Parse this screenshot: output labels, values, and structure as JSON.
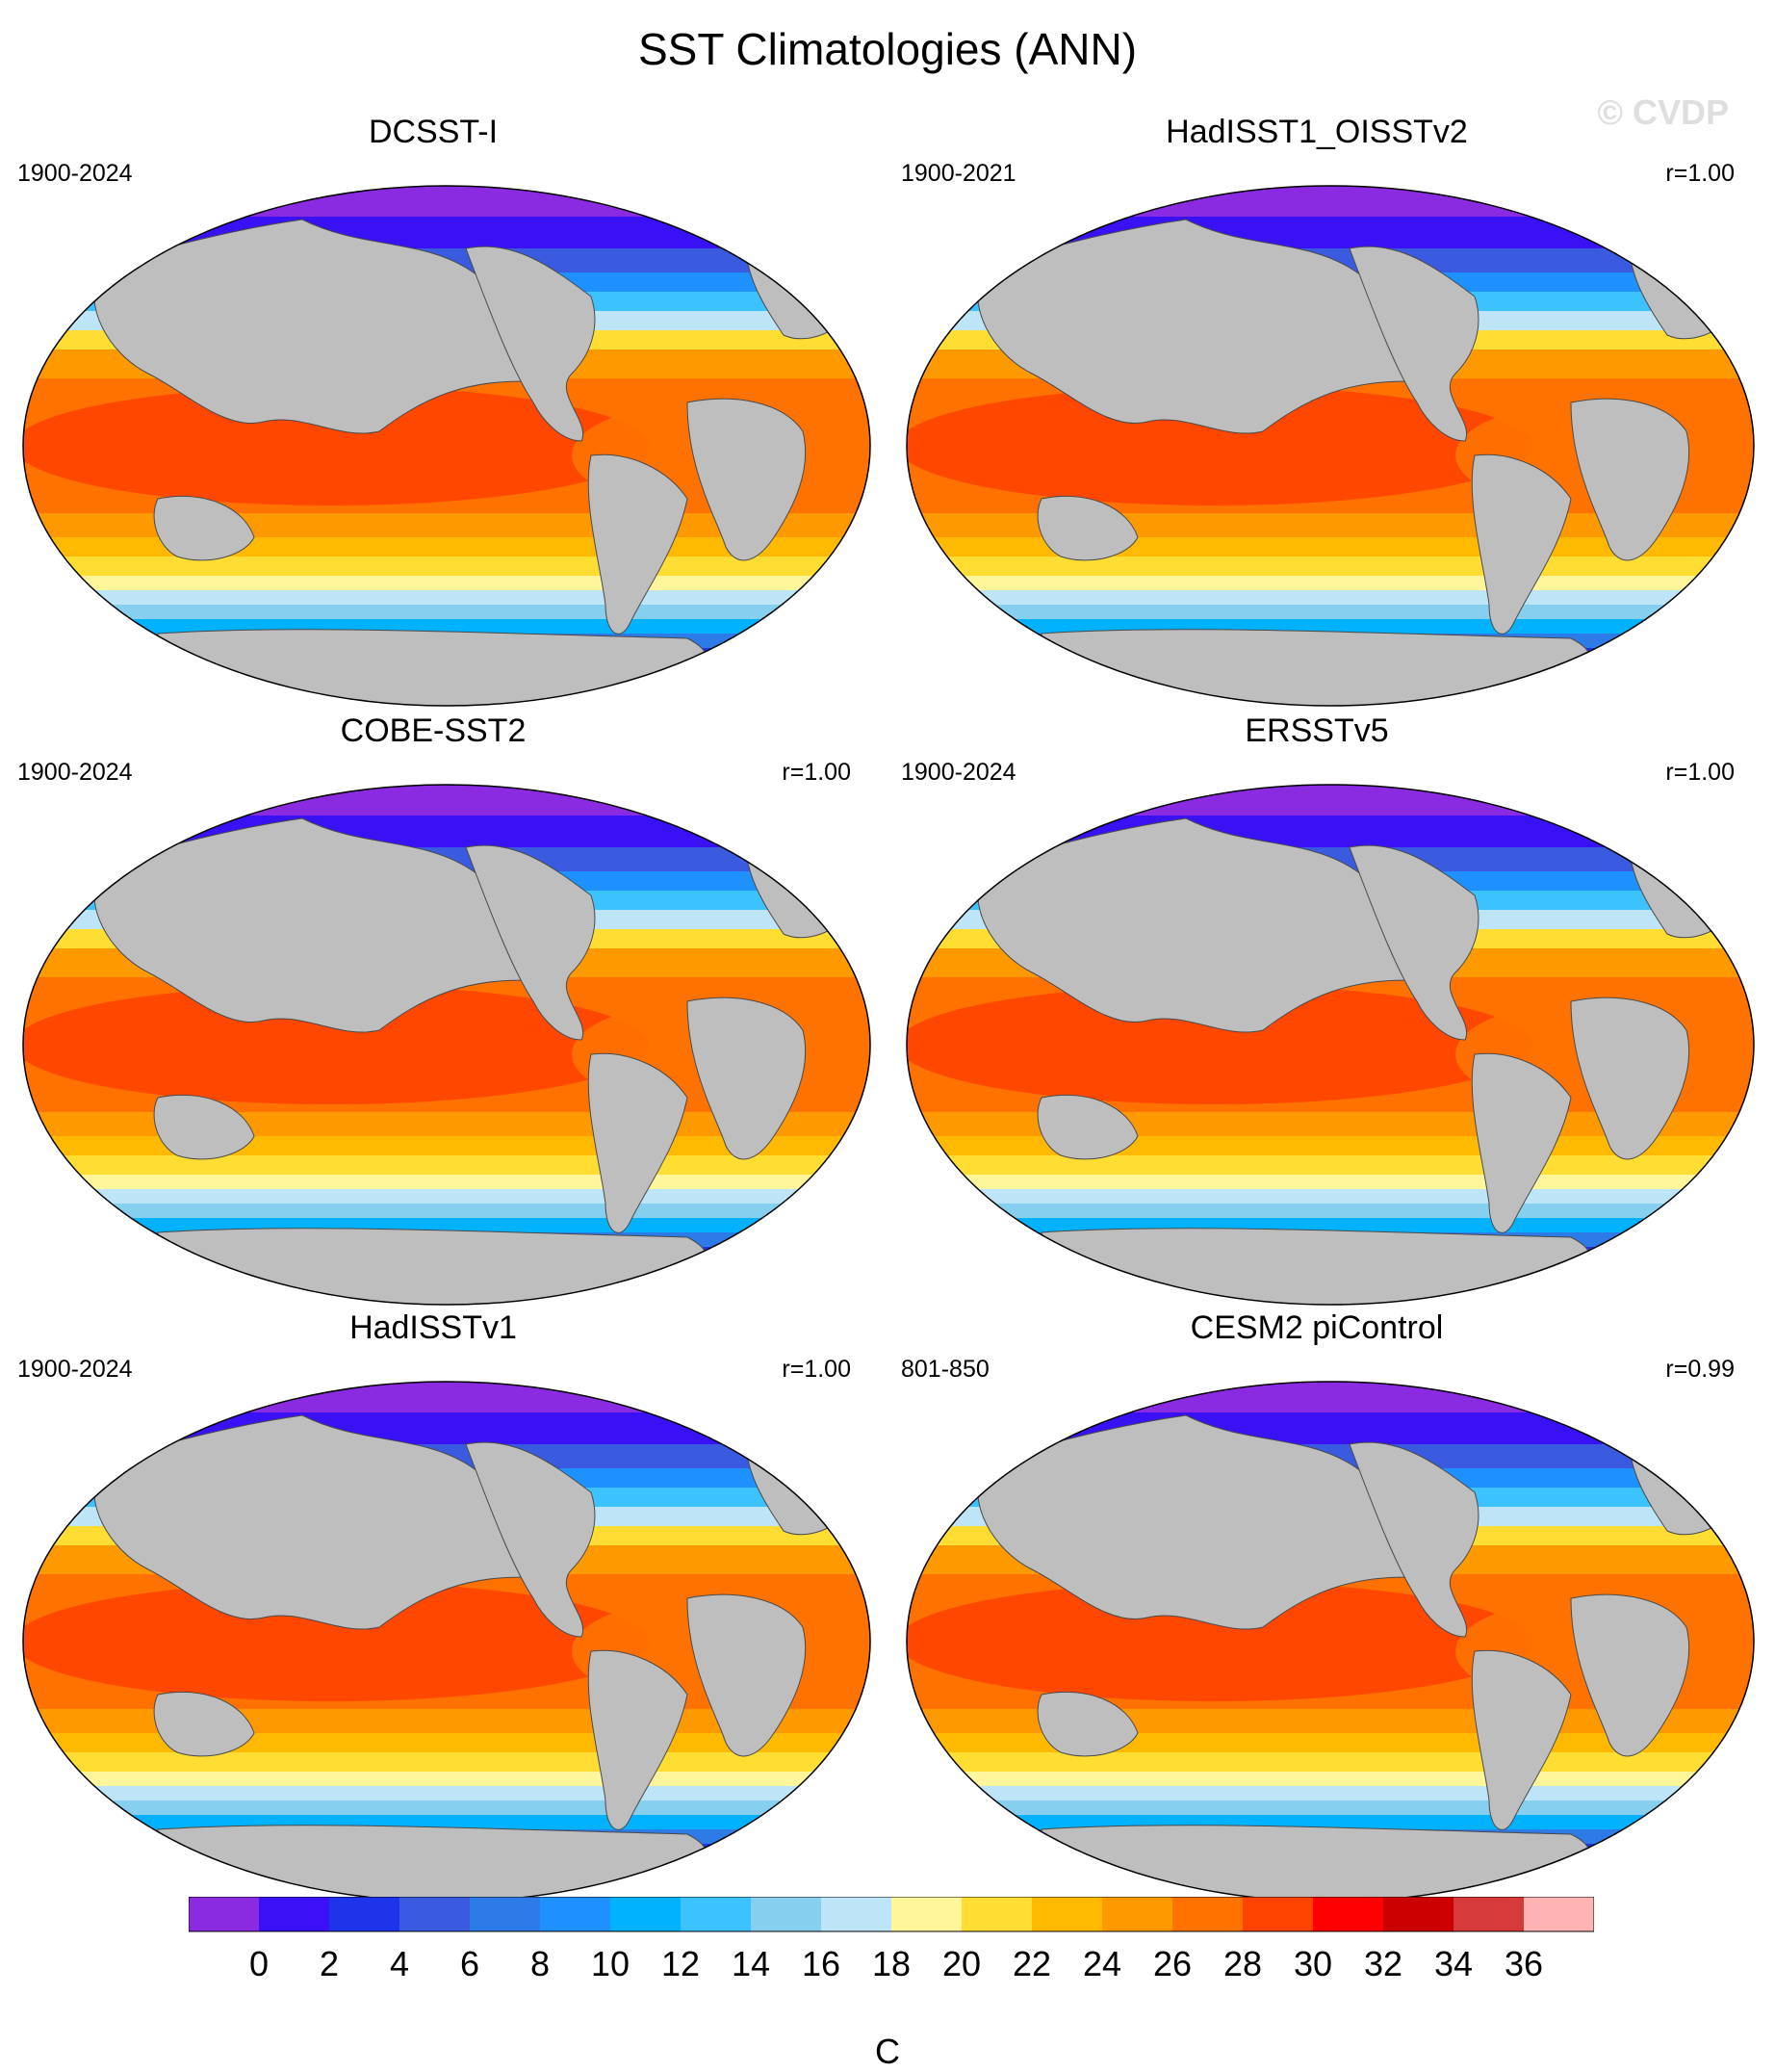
{
  "title": "SST Climatologies (ANN)",
  "watermark": "© CVDP",
  "panels": [
    {
      "name": "DCSST-I",
      "years": "1900-2024",
      "corr": ""
    },
    {
      "name": "HadISST1_OISSTv2",
      "years": "1900-2021",
      "corr": "r=1.00"
    },
    {
      "name": "COBE-SST2",
      "years": "1900-2024",
      "corr": "r=1.00"
    },
    {
      "name": "ERSSTv5",
      "years": "1900-2024",
      "corr": "r=1.00"
    },
    {
      "name": "HadISSTv1",
      "years": "1900-2024",
      "corr": "r=1.00"
    },
    {
      "name": "CESM2 piControl",
      "years": "801-850",
      "corr": "r=0.99"
    }
  ],
  "colorbar": {
    "units": "C",
    "labels": [
      "0",
      "2",
      "4",
      "6",
      "8",
      "10",
      "12",
      "14",
      "16",
      "18",
      "20",
      "22",
      "24",
      "26",
      "28",
      "30",
      "32",
      "34",
      "36"
    ],
    "colors": [
      "#8a2be2",
      "#3a11f5",
      "#1f33ea",
      "#3a5be0",
      "#2d7be6",
      "#1e90ff",
      "#00b2ff",
      "#3cc2ff",
      "#87cfef",
      "#bde4f7",
      "#fff59a",
      "#ffdd33",
      "#ffb900",
      "#ff9900",
      "#ff7200",
      "#ff4200",
      "#ff0000",
      "#cc0000",
      "#d63a3a",
      "#ffb3b3"
    ]
  }
}
